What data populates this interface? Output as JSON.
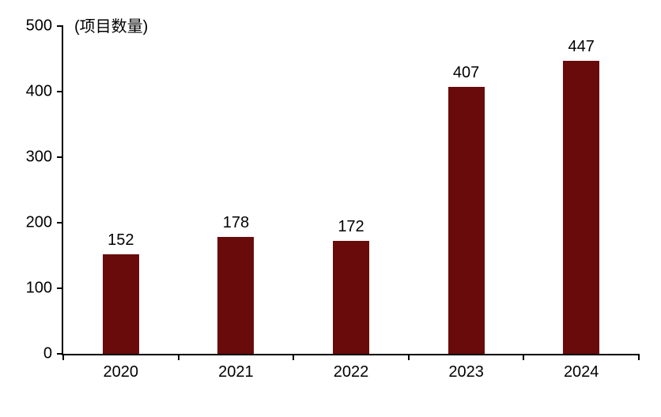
{
  "chart_data": {
    "type": "bar",
    "title": "(项目数量)",
    "categories": [
      "2020",
      "2021",
      "2022",
      "2023",
      "2024"
    ],
    "values": [
      152,
      178,
      172,
      407,
      447
    ],
    "xlabel": "",
    "ylabel": "",
    "ylim": [
      0,
      500
    ],
    "yticks": [
      0,
      100,
      200,
      300,
      400,
      500
    ],
    "grid": false,
    "legend_position": "none",
    "colors": {
      "bar": "#690b0b",
      "axis": "#000000",
      "text": "#000000",
      "background": "#ffffff"
    }
  }
}
